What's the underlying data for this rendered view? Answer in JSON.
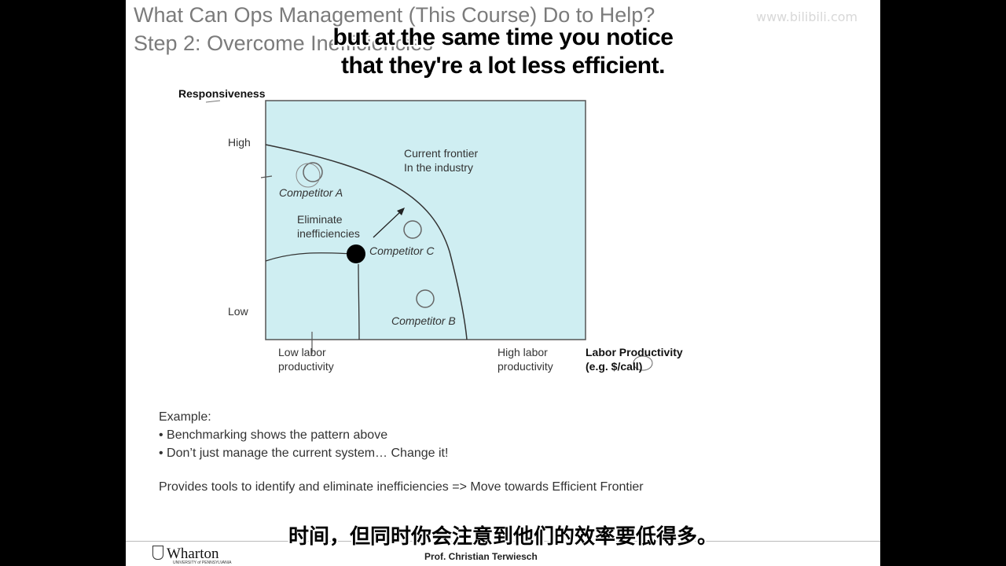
{
  "slide": {
    "title_line1": "What Can Ops Management (This Course) Do to Help?",
    "title_line2": "Step 2: Overcome Inefficiencies",
    "watermark": "www.bilibili.com"
  },
  "subtitles": {
    "english_line1": "but at the same time you notice",
    "english_line2": "that they're a lot less efficient.",
    "chinese": "时间，但同时你会注意到他们的效率要低得多。"
  },
  "chart": {
    "y_axis_label": "Responsiveness",
    "y_high": "High",
    "y_low": "Low",
    "x_low_line1": "Low labor",
    "x_low_line2": "productivity",
    "x_high_line1": "High labor",
    "x_high_line2": "productivity",
    "x_axis_label_line1": "Labor Productivity",
    "x_axis_label_line2": "(e.g. $/call)",
    "frontier_line1": "Current frontier",
    "frontier_line2": "In the industry",
    "eliminate_line1": "Eliminate",
    "eliminate_line2": "inefficiencies",
    "competitor_a": "Competitor A",
    "competitor_b": "Competitor B",
    "competitor_c": "Competitor C",
    "plot_background": "#cfeef2"
  },
  "body": {
    "example_heading": "Example:",
    "bullet1": "• Benchmarking shows the pattern above",
    "bullet2": "• Don’t just manage the current system… Change it!",
    "summary": "Provides tools to identify and eliminate inefficiencies => Move towards  Efficient Frontier"
  },
  "footer": {
    "logo_text": "Wharton",
    "logo_subtext": "UNIVERSITY of PENNSYLVANIA",
    "presenter": "Prof. Christian Terwiesch"
  }
}
